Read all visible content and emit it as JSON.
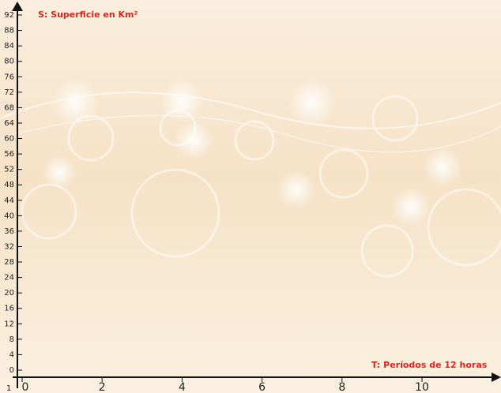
{
  "chart_data": {
    "type": "line",
    "y_label": "S: Superficie en Km²",
    "x_label": "T: Períodos de 12 horas",
    "annotation": "1",
    "series": [],
    "xlim": [
      0,
      12
    ],
    "xticks": [
      0,
      2,
      4,
      6,
      8,
      10
    ],
    "ylim": [
      0,
      92
    ],
    "yticks": [
      0,
      4,
      8,
      12,
      16,
      20,
      24,
      28,
      32,
      36,
      40,
      44,
      48,
      52,
      56,
      60,
      64,
      68,
      72,
      76,
      80,
      84,
      88,
      92
    ],
    "grid": false
  }
}
